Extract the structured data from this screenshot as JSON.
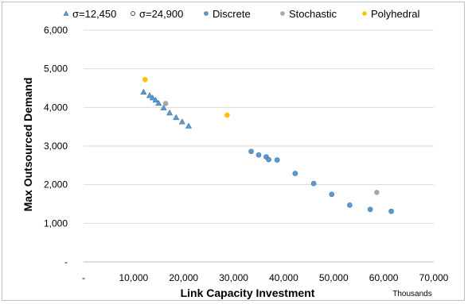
{
  "chart_data": {
    "type": "scatter",
    "xlabel": "Link Capacity Investment",
    "ylabel": "Max Outsourced Demand",
    "x_units": "Thousands",
    "xlim": [
      0,
      70000
    ],
    "ylim": [
      0,
      6000
    ],
    "x_ticks": [
      {
        "value": 0,
        "label": "-"
      },
      {
        "value": 10000,
        "label": "10,000"
      },
      {
        "value": 20000,
        "label": "20,000"
      },
      {
        "value": 30000,
        "label": "30,000"
      },
      {
        "value": 40000,
        "label": "40,000"
      },
      {
        "value": 50000,
        "label": "50,000"
      },
      {
        "value": 60000,
        "label": "60,000"
      },
      {
        "value": 70000,
        "label": "70,000"
      }
    ],
    "y_ticks": [
      {
        "value": 0,
        "label": "-"
      },
      {
        "value": 1000,
        "label": "1,000"
      },
      {
        "value": 2000,
        "label": "2,000"
      },
      {
        "value": 3000,
        "label": "3,000"
      },
      {
        "value": 4000,
        "label": "4,000"
      },
      {
        "value": 5000,
        "label": "5,000"
      },
      {
        "value": 6000,
        "label": "6,000"
      }
    ],
    "grid": "horizontal",
    "legend_position": "top",
    "series": [
      {
        "name": "σ=12,450",
        "legend_marker": "triangle",
        "x": [
          12000,
          13200,
          13800,
          14400
        ],
        "y": [
          4400,
          4310,
          4250,
          4190
        ]
      },
      {
        "name": "σ=24,900",
        "legend_marker": "circle",
        "x": [
          15000,
          16000,
          17200,
          18500,
          19700,
          21000
        ],
        "y": [
          4110,
          3990,
          3860,
          3740,
          3630,
          3520
        ]
      },
      {
        "name": "Discrete",
        "legend_marker": "dot",
        "x": [
          33500,
          35000,
          36500,
          37000,
          38700,
          42300,
          46000,
          49600,
          53200,
          57300,
          61500
        ],
        "y": [
          2860,
          2770,
          2720,
          2650,
          2640,
          2290,
          2030,
          1750,
          1470,
          1360,
          1310
        ]
      },
      {
        "name": "Stochastic",
        "legend_marker": "dot",
        "x": [
          16400,
          58600
        ],
        "y": [
          4100,
          1800
        ]
      },
      {
        "name": "Polyhedral",
        "legend_marker": "dot",
        "x": [
          12300,
          28700
        ],
        "y": [
          4720,
          3800
        ]
      }
    ],
    "colors": {
      "σ=12,450": "#5b9bd5",
      "σ=24,900": "#5b9bd5",
      "Discrete": "#5b9bd5",
      "Stochastic": "#a5a5a5",
      "Polyhedral": "#ffc000",
      "marker_edge": "#41719c",
      "grid": "#d9d9d9",
      "axis": "#bfbfbf",
      "frame": "#bfbfbf"
    }
  }
}
